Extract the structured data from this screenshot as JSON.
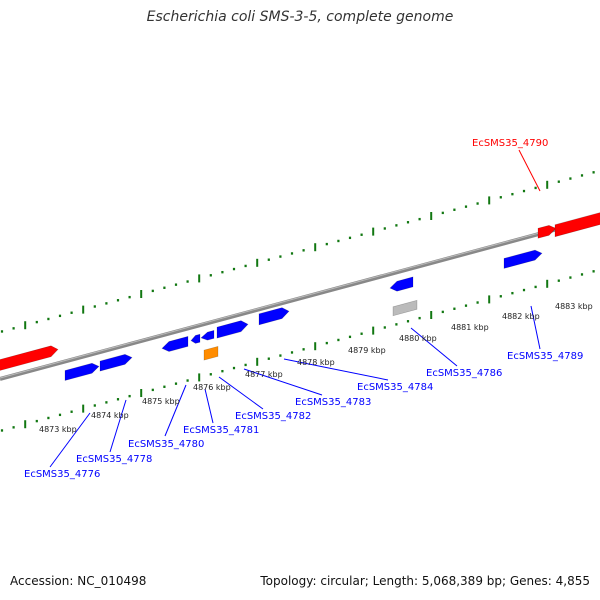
{
  "title": "Escherichia coli SMS-3-5, complete genome",
  "footer": {
    "accession": "Accession: NC_010498",
    "summary": "Topology: circular; Length: 5,068,389 bp; Genes: 4,855"
  },
  "colors": {
    "forward_gene": "#ff0000",
    "reverse_gene": "#0000ff",
    "rna_gene": "#ff8c00",
    "pseudo_gene": "#bbbbbb",
    "tick": "#117711",
    "backbone": "#888888"
  },
  "scale_labels": [
    "4873 kbp",
    "4874 kbp",
    "4875 kbp",
    "4876 kbp",
    "4877 kbp",
    "4878 kbp",
    "4879 kbp",
    "4880 kbp",
    "4881 kbp",
    "4882 kbp",
    "4883 kbp"
  ],
  "gene_labels": [
    {
      "text": "EcSMS35_4790",
      "strand": "forward"
    },
    {
      "text": "EcSMS35_4789",
      "strand": "reverse"
    },
    {
      "text": "EcSMS35_4786",
      "strand": "reverse"
    },
    {
      "text": "EcSMS35_4784",
      "strand": "reverse"
    },
    {
      "text": "EcSMS35_4783",
      "strand": "reverse"
    },
    {
      "text": "EcSMS35_4782",
      "strand": "reverse"
    },
    {
      "text": "EcSMS35_4781",
      "strand": "reverse"
    },
    {
      "text": "EcSMS35_4780",
      "strand": "reverse"
    },
    {
      "text": "EcSMS35_4778",
      "strand": "reverse"
    },
    {
      "text": "EcSMS35_4776",
      "strand": "reverse"
    }
  ]
}
